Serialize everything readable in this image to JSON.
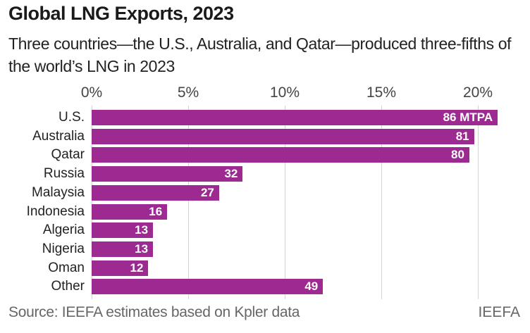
{
  "chart_data": {
    "type": "bar",
    "orientation": "horizontal",
    "title": "Global LNG Exports, 2023",
    "subtitle": "Three countries—the U.S., Australia, and Qatar—produced three-fifths of the world’s LNG in 2023",
    "categories": [
      "U.S.",
      "Australia",
      "Qatar",
      "Russia",
      "Malaysia",
      "Indonesia",
      "Algeria",
      "Nigeria",
      "Oman",
      "Other"
    ],
    "values": [
      86,
      81,
      80,
      32,
      27,
      16,
      13,
      13,
      12,
      49
    ],
    "data_labels": [
      "86 MTPA",
      "81",
      "80",
      "32",
      "27",
      "16",
      "13",
      "13",
      "12",
      "49"
    ],
    "unit": "MTPA",
    "x_ticks": [
      "0%",
      "5%",
      "10%",
      "15%",
      "20%"
    ],
    "x_tick_values": [
      0,
      5,
      10,
      15,
      20
    ],
    "xlabel": "",
    "ylabel": "",
    "grid": true,
    "bar_color": "#9c2a90"
  },
  "footer": {
    "source": "Source: IEEFA estimates based on Kpler data",
    "brand": "IEEFA"
  }
}
